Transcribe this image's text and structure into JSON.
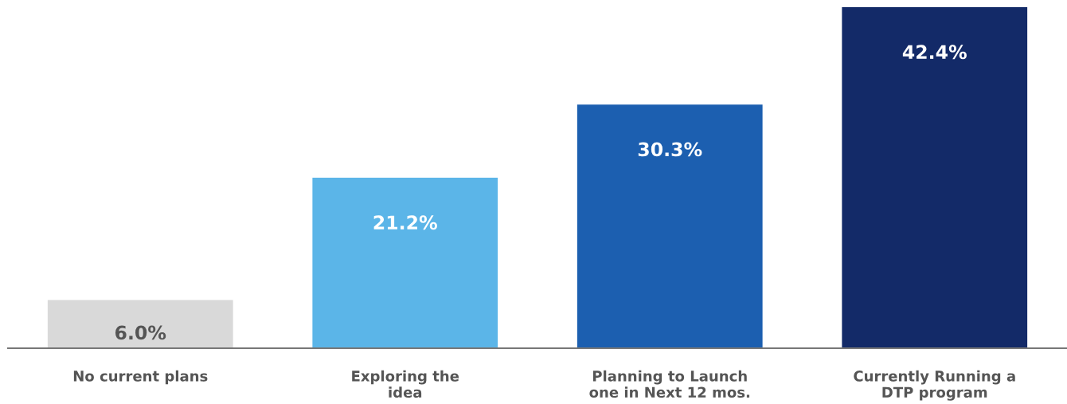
{
  "chart_data": {
    "type": "bar",
    "categories": [
      "No current plans",
      "Exploring the\nidea",
      "Planning to Launch\none in Next 12 mos.",
      "Currently Running a\nDTP program"
    ],
    "values": [
      6.0,
      21.2,
      30.3,
      42.4
    ],
    "colors": [
      "#d9d9d9",
      "#5bb5e8",
      "#1c5fb0",
      "#132a68"
    ],
    "value_labels": [
      "6.0%",
      "21.2%",
      "30.3%",
      "42.4%"
    ],
    "tick_labels": "x",
    "grid": false,
    "legend": false
  }
}
